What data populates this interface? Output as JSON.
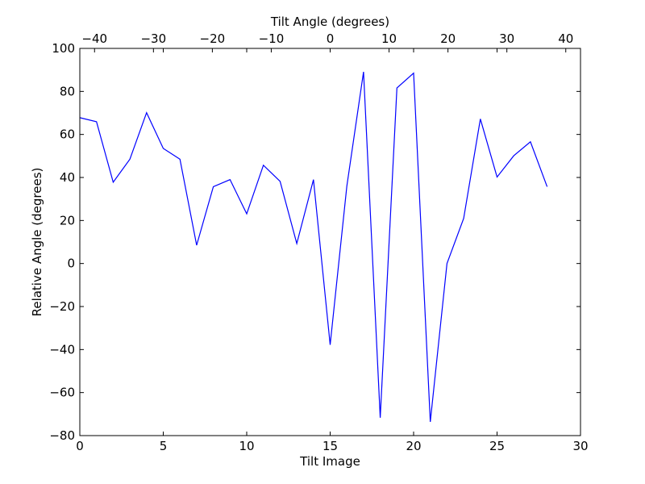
{
  "chart_data": {
    "type": "line",
    "xlabel": "Tilt Image",
    "ylabel": "Relative Angle (degrees)",
    "top_xlabel": "Tilt Angle (degrees)",
    "xlim": [
      0,
      30
    ],
    "ylim": [
      -80,
      100
    ],
    "top_xlim": [
      -42.5,
      42.5
    ],
    "x_ticks": [
      0,
      5,
      10,
      15,
      20,
      25,
      30
    ],
    "y_ticks": [
      -80,
      -60,
      -40,
      -20,
      0,
      20,
      40,
      60,
      80,
      100
    ],
    "top_x_ticks": [
      -40,
      -30,
      -20,
      -10,
      0,
      10,
      20,
      30,
      40
    ],
    "x_tick_labels": [
      "0",
      "5",
      "10",
      "15",
      "20",
      "25",
      "30"
    ],
    "y_tick_labels": [
      "−80",
      "−60",
      "−40",
      "−20",
      "0",
      "20",
      "40",
      "60",
      "80",
      "100"
    ],
    "top_x_tick_labels": [
      "−40",
      "−30",
      "−20",
      "−10",
      "0",
      "10",
      "20",
      "30",
      "40"
    ],
    "grid": false,
    "series": [
      {
        "color": "#0000ff",
        "x": [
          0,
          1,
          2,
          3,
          4,
          5,
          6,
          7,
          8,
          9,
          10,
          11,
          12,
          13,
          14,
          15,
          16,
          17,
          18,
          19,
          20,
          21,
          22,
          23,
          24,
          25,
          26,
          27,
          28
        ],
        "y": [
          67.8,
          65.9,
          37.8,
          48.5,
          70.1,
          53.5,
          48.5,
          8.5,
          35.7,
          39.0,
          23.1,
          45.7,
          38.2,
          9.3,
          39.0,
          -37.8,
          36.0,
          89.1,
          -71.7,
          81.6,
          88.5,
          -73.6,
          0.0,
          21.0,
          67.2,
          40.2,
          50.1,
          56.6,
          35.7
        ]
      }
    ]
  }
}
